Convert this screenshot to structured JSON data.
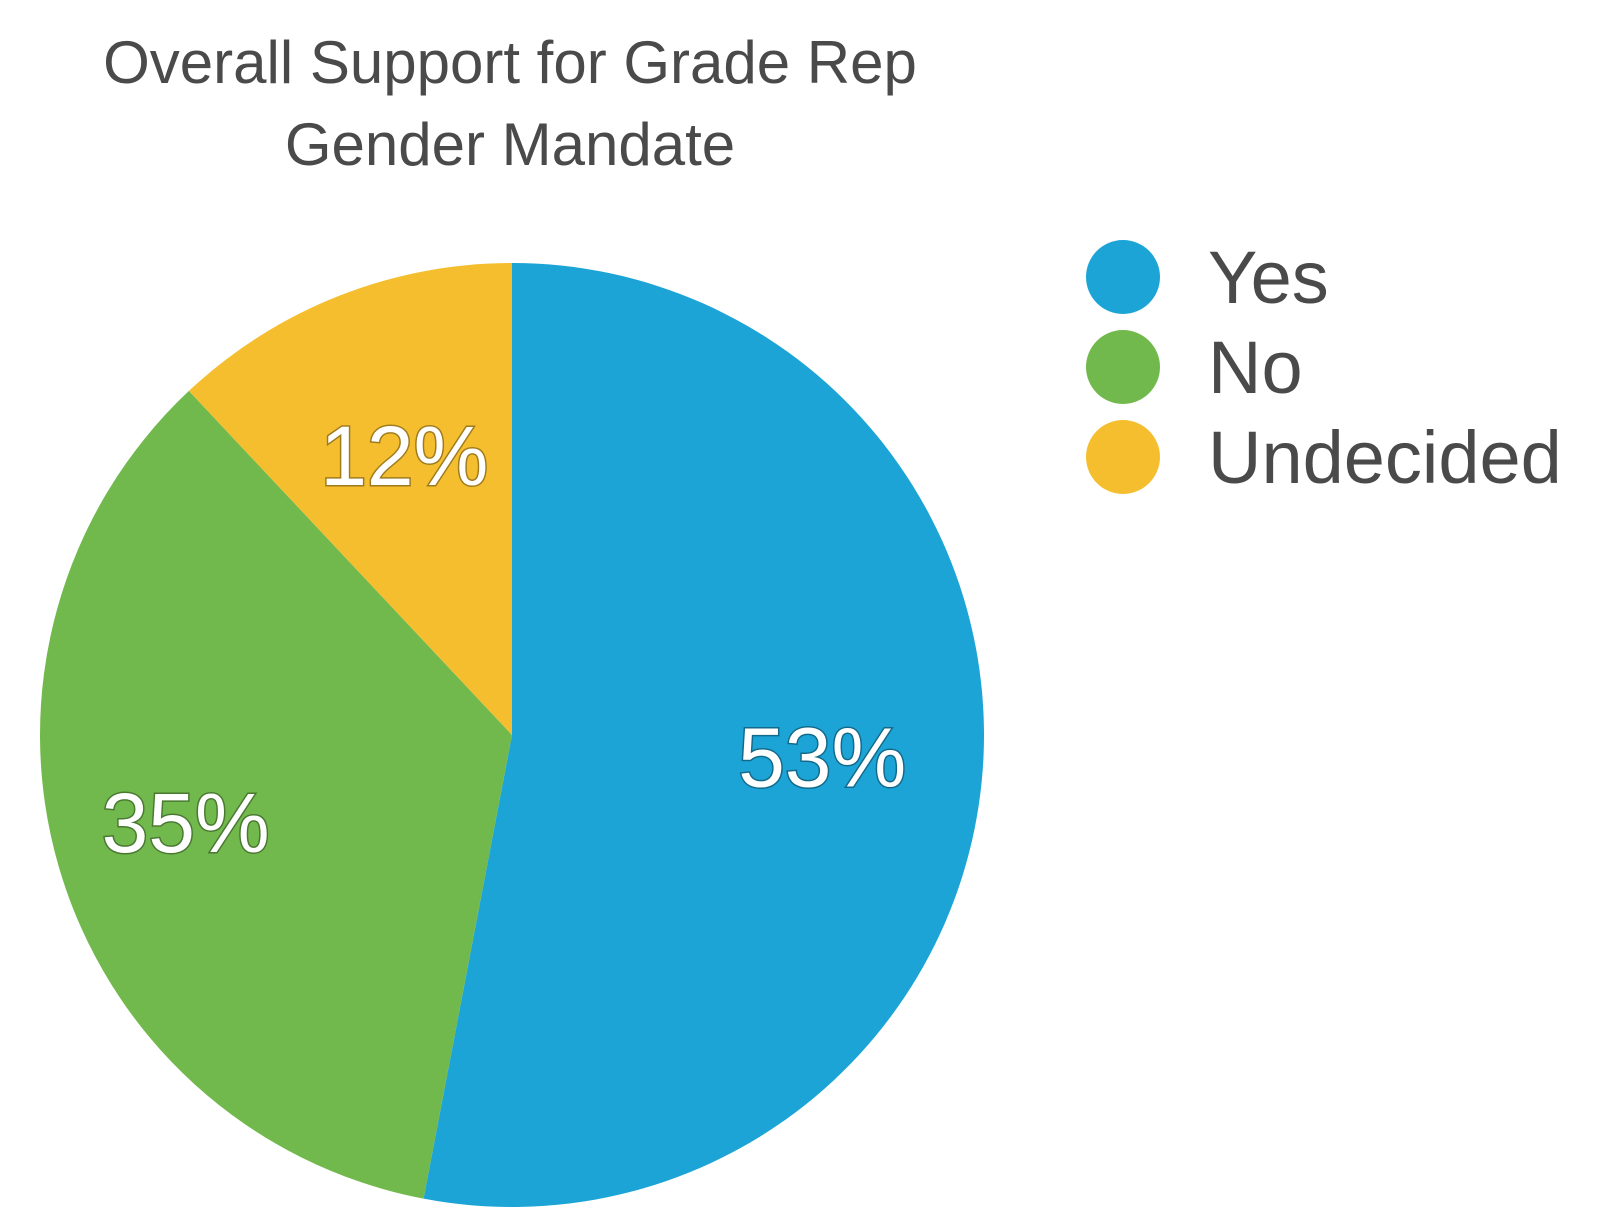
{
  "chart_data": {
    "type": "pie",
    "title": [
      "Overall Support for Grade Rep",
      "Gender Mandate"
    ],
    "slices": [
      {
        "name": "Yes",
        "value": 53,
        "label": "53%",
        "color": "#1ca4d6"
      },
      {
        "name": "No",
        "value": 35,
        "label": "35%",
        "color": "#71b94c"
      },
      {
        "name": "Undecided",
        "value": 12,
        "label": "12%",
        "color": "#f5be2e"
      }
    ],
    "legend_placement": "right"
  }
}
